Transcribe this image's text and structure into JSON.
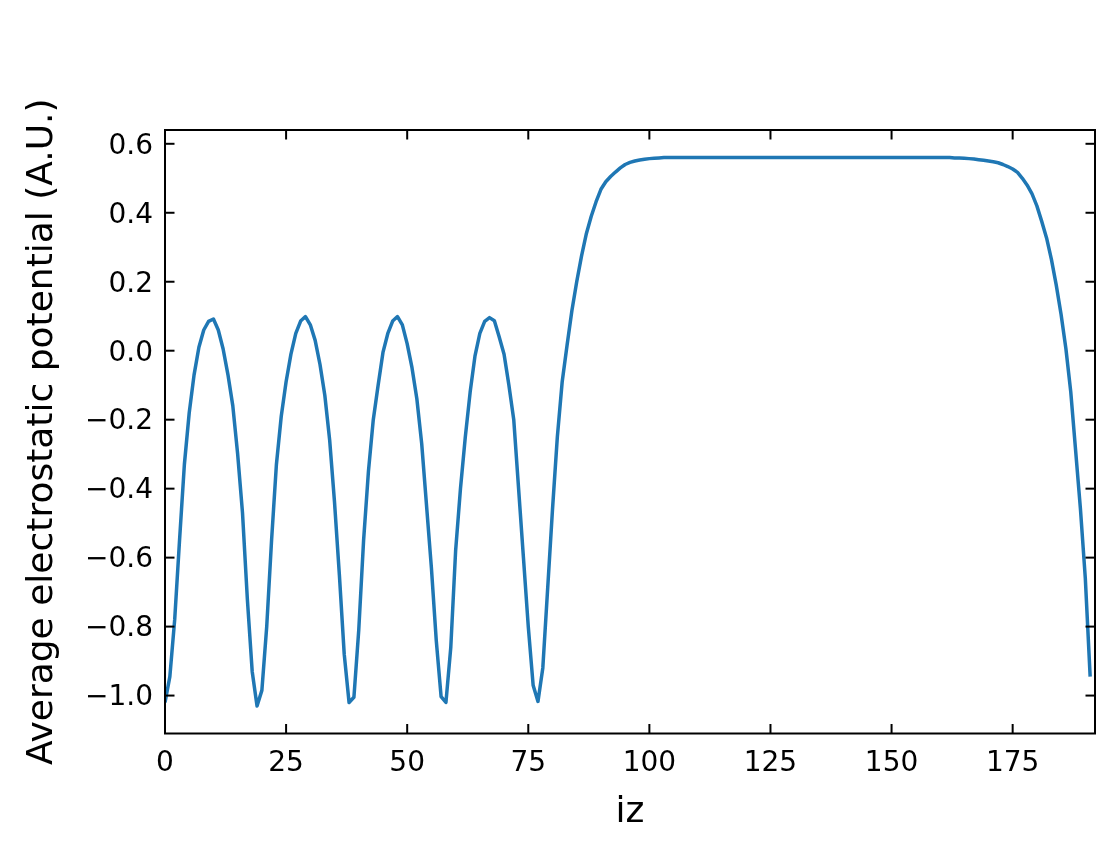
{
  "chart_data": {
    "type": "line",
    "xlabel": "iz",
    "ylabel": "Average electrostatic potential (A.U.)",
    "color": "#1f77b4",
    "x": [
      0,
      1,
      2,
      3,
      4,
      5,
      6,
      7,
      8,
      9,
      10,
      11,
      12,
      13,
      14,
      15,
      16,
      17,
      18,
      19,
      20,
      21,
      22,
      23,
      24,
      25,
      26,
      27,
      28,
      29,
      30,
      31,
      32,
      33,
      34,
      35,
      36,
      37,
      38,
      39,
      40,
      41,
      42,
      43,
      44,
      45,
      46,
      47,
      48,
      49,
      50,
      51,
      52,
      53,
      54,
      55,
      56,
      57,
      58,
      59,
      60,
      61,
      62,
      63,
      64,
      65,
      66,
      67,
      68,
      69,
      70,
      71,
      72,
      73,
      74,
      75,
      76,
      77,
      78,
      79,
      80,
      81,
      82,
      83,
      84,
      85,
      86,
      87,
      88,
      89,
      90,
      91,
      92,
      93,
      94,
      95,
      96,
      97,
      98,
      99,
      100,
      101,
      102,
      103,
      104,
      105,
      110,
      115,
      120,
      125,
      130,
      135,
      140,
      145,
      150,
      155,
      160,
      161,
      162,
      163,
      164,
      165,
      166,
      167,
      168,
      169,
      170,
      171,
      172,
      173,
      174,
      175,
      176,
      177,
      178,
      179,
      180,
      181,
      182,
      183,
      184,
      185,
      186,
      187,
      188,
      189,
      190,
      191
    ],
    "values": [
      -1.02,
      -0.945,
      -0.78,
      -0.55,
      -0.33,
      -0.18,
      -0.07,
      0.01,
      0.06,
      0.085,
      0.092,
      0.06,
      0.005,
      -0.07,
      -0.16,
      -0.3,
      -0.47,
      -0.72,
      -0.93,
      -1.03,
      -0.985,
      -0.8,
      -0.55,
      -0.33,
      -0.19,
      -0.09,
      -0.01,
      0.05,
      0.086,
      0.099,
      0.075,
      0.03,
      -0.04,
      -0.13,
      -0.26,
      -0.44,
      -0.65,
      -0.88,
      -1.02,
      -1.005,
      -0.81,
      -0.55,
      -0.35,
      -0.2,
      -0.1,
      -0.005,
      0.05,
      0.086,
      0.099,
      0.075,
      0.02,
      -0.05,
      -0.14,
      -0.27,
      -0.45,
      -0.63,
      -0.84,
      -1.003,
      -1.02,
      -0.86,
      -0.58,
      -0.4,
      -0.25,
      -0.12,
      -0.015,
      0.05,
      0.085,
      0.096,
      0.087,
      0.04,
      -0.01,
      -0.1,
      -0.2,
      -0.4,
      -0.6,
      -0.8,
      -0.97,
      -1.017,
      -0.92,
      -0.69,
      -0.46,
      -0.25,
      -0.09,
      0.015,
      0.116,
      0.2,
      0.275,
      0.34,
      0.39,
      0.432,
      0.468,
      0.49,
      0.505,
      0.518,
      0.53,
      0.54,
      0.546,
      0.55,
      0.553,
      0.555,
      0.557,
      0.558,
      0.559,
      0.56,
      0.56,
      0.56,
      0.56,
      0.56,
      0.56,
      0.56,
      0.56,
      0.56,
      0.56,
      0.56,
      0.56,
      0.56,
      0.56,
      0.56,
      0.56,
      0.559,
      0.559,
      0.558,
      0.557,
      0.556,
      0.554,
      0.552,
      0.55,
      0.548,
      0.545,
      0.54,
      0.534,
      0.527,
      0.517,
      0.5,
      0.48,
      0.455,
      0.42,
      0.375,
      0.327,
      0.265,
      0.19,
      0.105,
      0.005,
      -0.12,
      -0.29,
      -0.46,
      -0.66,
      -0.945
    ],
    "xlim": [
      0,
      192
    ],
    "xticks": [
      0,
      25,
      50,
      75,
      100,
      125,
      150,
      175
    ],
    "ylim": [
      -1.11,
      0.64
    ],
    "yticks": [
      {
        "value": -1.0,
        "label": "−1.0"
      },
      {
        "value": -0.8,
        "label": "−0.8"
      },
      {
        "value": -0.6,
        "label": "−0.6"
      },
      {
        "value": -0.4,
        "label": "−0.4"
      },
      {
        "value": -0.2,
        "label": "−0.2"
      },
      {
        "value": 0,
        "label": "0.0"
      },
      {
        "value": 0.2,
        "label": "0.2"
      },
      {
        "value": 0.4,
        "label": "0.4"
      },
      {
        "value": 0.6,
        "label": "0.6"
      }
    ]
  }
}
